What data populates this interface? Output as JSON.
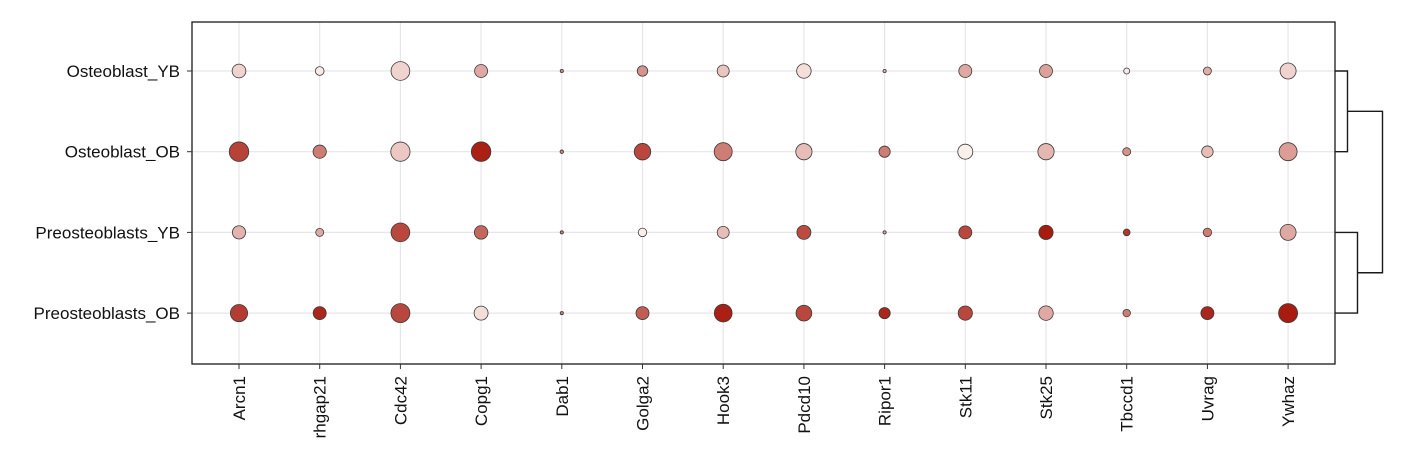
{
  "chart_data": {
    "type": "scatter",
    "subtype": "dotplot",
    "title": "",
    "xlabel": "",
    "ylabel": "",
    "grid": true,
    "legend": "none",
    "genes": [
      "Arcn1",
      "Arhgap21",
      "Cdc42",
      "Copg1",
      "Dab1",
      "Golga2",
      "Hook3",
      "Pdcd10",
      "Ripor1",
      "Stk11",
      "Stk25",
      "Tbccd1",
      "Uvrag",
      "Ywhaz"
    ],
    "gene_labels_visible": [
      "Arcn1",
      "rhgap21",
      "Cdc42",
      "Copg1",
      "Dab1",
      "Golga2",
      "Hook3",
      "Pdcd10",
      "Ripor1",
      "Stk11",
      "Stk25",
      "Tbccd1",
      "Uvrag",
      "Ywhaz"
    ],
    "groups": [
      "Osteoblast_YB",
      "Osteoblast_OB",
      "Preosteoblasts_YB",
      "Preosteoblasts_OB"
    ],
    "dot_size": [
      [
        0.55,
        0.35,
        0.75,
        0.52,
        0.12,
        0.42,
        0.48,
        0.58,
        0.1,
        0.52,
        0.52,
        0.24,
        0.32,
        0.64
      ],
      [
        0.78,
        0.53,
        0.77,
        0.78,
        0.14,
        0.66,
        0.72,
        0.65,
        0.45,
        0.6,
        0.65,
        0.32,
        0.46,
        0.72
      ],
      [
        0.53,
        0.32,
        0.75,
        0.54,
        0.12,
        0.34,
        0.48,
        0.56,
        0.09,
        0.52,
        0.57,
        0.27,
        0.34,
        0.64
      ],
      [
        0.69,
        0.52,
        0.76,
        0.56,
        0.12,
        0.52,
        0.71,
        0.63,
        0.45,
        0.57,
        0.58,
        0.3,
        0.52,
        0.76
      ]
    ],
    "expression": [
      [
        0.15,
        0.05,
        0.15,
        0.35,
        0.5,
        0.45,
        0.22,
        0.1,
        0.3,
        0.35,
        0.38,
        0.05,
        0.32,
        0.15
      ],
      [
        0.82,
        0.55,
        0.2,
        0.98,
        0.55,
        0.8,
        0.55,
        0.25,
        0.55,
        0.02,
        0.28,
        0.45,
        0.25,
        0.4
      ],
      [
        0.3,
        0.35,
        0.8,
        0.65,
        0.55,
        0.02,
        0.25,
        0.78,
        0.35,
        0.8,
        1.0,
        0.88,
        0.55,
        0.35
      ],
      [
        0.85,
        0.95,
        0.8,
        0.1,
        0.55,
        0.7,
        0.98,
        0.8,
        0.95,
        0.8,
        0.35,
        0.55,
        0.95,
        1.0
      ]
    ],
    "color_low": "#fdf3f0",
    "color_high": "#a81c10",
    "dendrogram": {
      "side": "right",
      "merges": [
        {
          "left": "Osteoblast_YB",
          "right": "Osteoblast_OB",
          "height": 0.25
        },
        {
          "left": "Preosteoblasts_YB",
          "right": "Preosteoblasts_OB",
          "height": 0.45
        },
        {
          "left": "cluster_1",
          "right": "cluster_2",
          "height": 0.95
        }
      ]
    }
  }
}
